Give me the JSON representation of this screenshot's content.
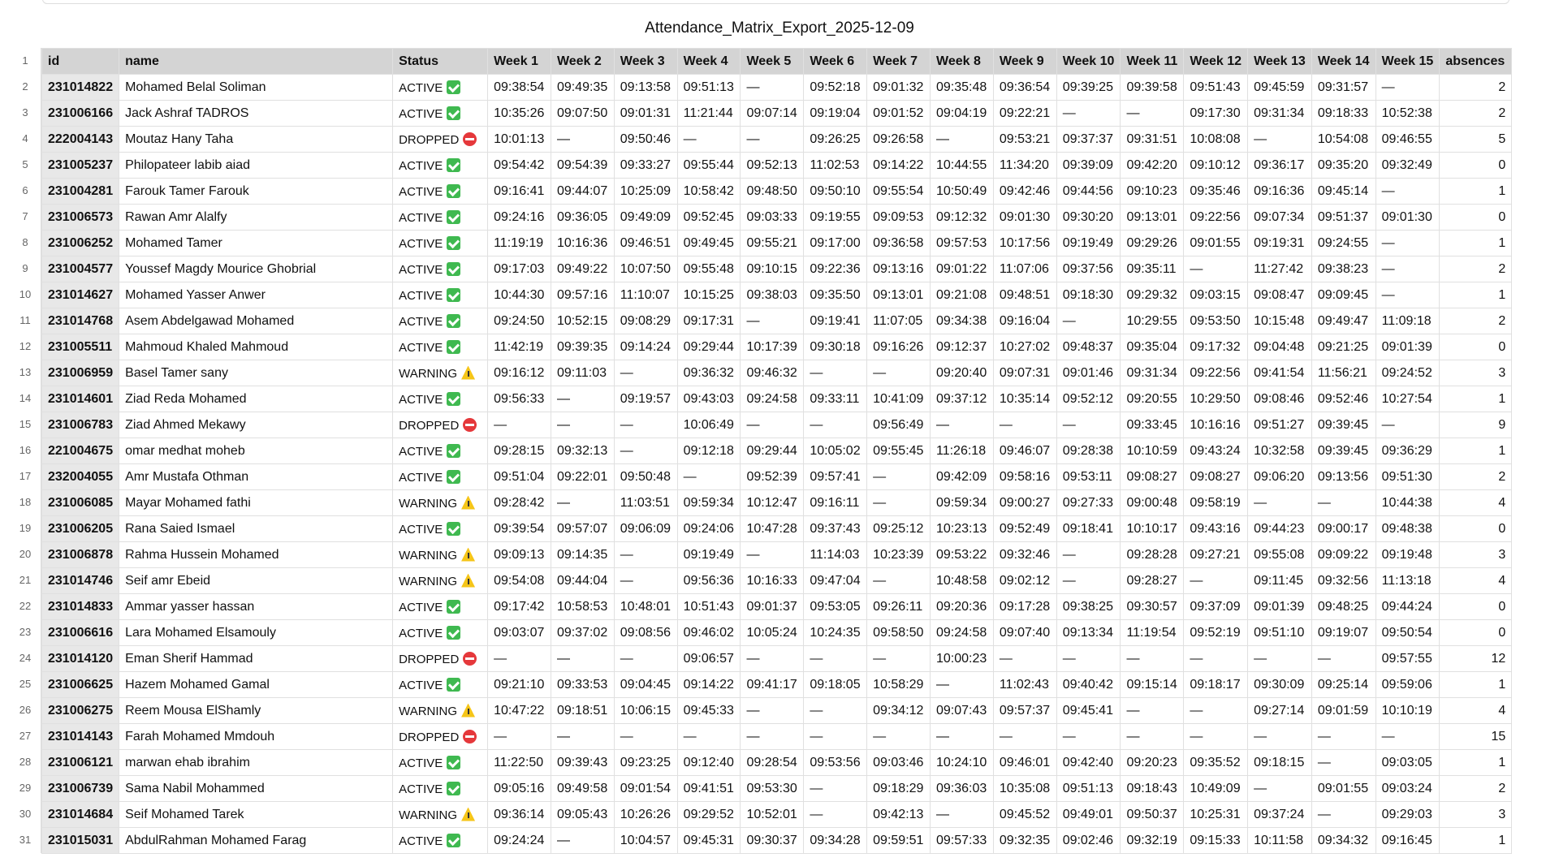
{
  "title": "Attendance_Matrix_Export_2025-12-09",
  "row_numbers": [
    1,
    2,
    3,
    4,
    5,
    6,
    7,
    8,
    9,
    10,
    11,
    12,
    13,
    14,
    15,
    16,
    17,
    18,
    19,
    20,
    21,
    22,
    23,
    24,
    25,
    26,
    27,
    28,
    29,
    30,
    31
  ],
  "table": {
    "columns": [
      "id",
      "name",
      "Status",
      "Week 1",
      "Week 2",
      "Week 3",
      "Week 4",
      "Week 5",
      "Week 6",
      "Week 7",
      "Week 8",
      "Week 9",
      "Week 10",
      "Week 11",
      "Week 12",
      "Week 13",
      "Week 14",
      "Week 15",
      "absences"
    ],
    "rows": [
      [
        "231014822",
        "Mohamed Belal Soliman",
        "ACTIVE",
        "09:38:54",
        "09:49:35",
        "09:13:58",
        "09:51:13",
        "—",
        "09:52:18",
        "09:01:32",
        "09:35:48",
        "09:36:54",
        "09:39:25",
        "09:39:58",
        "09:51:43",
        "09:45:59",
        "09:31:57",
        "—",
        2
      ],
      [
        "231006166",
        "Jack Ashraf TADROS",
        "ACTIVE",
        "10:35:26",
        "09:07:50",
        "09:01:31",
        "11:21:44",
        "09:07:14",
        "09:19:04",
        "09:01:52",
        "09:04:19",
        "09:22:21",
        "—",
        "—",
        "09:17:30",
        "09:31:34",
        "09:18:33",
        "10:52:38",
        2
      ],
      [
        "222004143",
        "Moutaz Hany Taha",
        "DROPPED",
        "10:01:13",
        "—",
        "09:50:46",
        "—",
        "—",
        "09:26:25",
        "09:26:58",
        "—",
        "09:53:21",
        "09:37:37",
        "09:31:51",
        "10:08:08",
        "—",
        "10:54:08",
        "09:46:55",
        5
      ],
      [
        "231005237",
        "Philopateer labib aiad",
        "ACTIVE",
        "09:54:42",
        "09:54:39",
        "09:33:27",
        "09:55:44",
        "09:52:13",
        "11:02:53",
        "09:14:22",
        "10:44:55",
        "11:34:20",
        "09:39:09",
        "09:42:20",
        "09:10:12",
        "09:36:17",
        "09:35:20",
        "09:32:49",
        0
      ],
      [
        "231004281",
        "Farouk Tamer Farouk",
        "ACTIVE",
        "09:16:41",
        "09:44:07",
        "10:25:09",
        "10:58:42",
        "09:48:50",
        "09:50:10",
        "09:55:54",
        "10:50:49",
        "09:42:46",
        "09:44:56",
        "09:10:23",
        "09:35:46",
        "09:16:36",
        "09:45:14",
        "—",
        1
      ],
      [
        "231006573",
        "Rawan Amr Alalfy",
        "ACTIVE",
        "09:24:16",
        "09:36:05",
        "09:49:09",
        "09:52:45",
        "09:03:33",
        "09:19:55",
        "09:09:53",
        "09:12:32",
        "09:01:30",
        "09:30:20",
        "09:13:01",
        "09:22:56",
        "09:07:34",
        "09:51:37",
        "09:01:30",
        0
      ],
      [
        "231006252",
        "Mohamed Tamer",
        "ACTIVE",
        "11:19:19",
        "10:16:36",
        "09:46:51",
        "09:49:45",
        "09:55:21",
        "09:17:00",
        "09:36:58",
        "09:57:53",
        "10:17:56",
        "09:19:49",
        "09:29:26",
        "09:01:55",
        "09:19:31",
        "09:24:55",
        "—",
        1
      ],
      [
        "231004577",
        "Youssef Magdy Mourice Ghobrial",
        "ACTIVE",
        "09:17:03",
        "09:49:22",
        "10:07:50",
        "09:55:48",
        "09:10:15",
        "09:22:36",
        "09:13:16",
        "09:01:22",
        "11:07:06",
        "09:37:56",
        "09:35:11",
        "—",
        "11:27:42",
        "09:38:23",
        "—",
        2
      ],
      [
        "231014627",
        "Mohamed Yasser Anwer",
        "ACTIVE",
        "10:44:30",
        "09:57:16",
        "11:10:07",
        "10:15:25",
        "09:38:03",
        "09:35:50",
        "09:13:01",
        "09:21:08",
        "09:48:51",
        "09:18:30",
        "09:29:32",
        "09:03:15",
        "09:08:47",
        "09:09:45",
        "—",
        1
      ],
      [
        "231014768",
        "Asem Abdelgawad Mohamed",
        "ACTIVE",
        "09:24:50",
        "10:52:15",
        "09:08:29",
        "09:17:31",
        "—",
        "09:19:41",
        "11:07:05",
        "09:34:38",
        "09:16:04",
        "—",
        "10:29:55",
        "09:53:50",
        "10:15:48",
        "09:49:47",
        "11:09:18",
        2
      ],
      [
        "231005511",
        "Mahmoud Khaled Mahmoud",
        "ACTIVE",
        "11:42:19",
        "09:39:35",
        "09:14:24",
        "09:29:44",
        "10:17:39",
        "09:30:18",
        "09:16:26",
        "09:12:37",
        "10:27:02",
        "09:48:37",
        "09:35:04",
        "09:17:32",
        "09:04:48",
        "09:21:25",
        "09:01:39",
        0
      ],
      [
        "231006959",
        "Basel Tamer sany",
        "WARNING",
        "09:16:12",
        "09:11:03",
        "—",
        "09:36:32",
        "09:46:32",
        "—",
        "—",
        "09:20:40",
        "09:07:31",
        "09:01:46",
        "09:31:34",
        "09:22:56",
        "09:41:54",
        "11:56:21",
        "09:24:52",
        3
      ],
      [
        "231014601",
        "Ziad Reda Mohamed",
        "ACTIVE",
        "09:56:33",
        "—",
        "09:19:57",
        "09:43:03",
        "09:24:58",
        "09:33:11",
        "10:41:09",
        "09:37:12",
        "10:35:14",
        "09:52:12",
        "09:20:55",
        "10:29:50",
        "09:08:46",
        "09:52:46",
        "10:27:54",
        1
      ],
      [
        "231006783",
        "Ziad Ahmed Mekawy",
        "DROPPED",
        "—",
        "—",
        "—",
        "10:06:49",
        "—",
        "—",
        "09:56:49",
        "—",
        "—",
        "—",
        "09:33:45",
        "10:16:16",
        "09:51:27",
        "09:39:45",
        "—",
        9
      ],
      [
        "221004675",
        "omar medhat moheb",
        "ACTIVE",
        "09:28:15",
        "09:32:13",
        "—",
        "09:12:18",
        "09:29:44",
        "10:05:02",
        "09:55:45",
        "11:26:18",
        "09:46:07",
        "09:28:38",
        "10:10:59",
        "09:43:24",
        "10:32:58",
        "09:39:45",
        "09:36:29",
        1
      ],
      [
        "232004055",
        "Amr Mustafa Othman",
        "ACTIVE",
        "09:51:04",
        "09:22:01",
        "09:50:48",
        "—",
        "09:52:39",
        "09:57:41",
        "—",
        "09:42:09",
        "09:58:16",
        "09:53:11",
        "09:08:27",
        "09:08:27",
        "09:06:20",
        "09:13:56",
        "09:51:30",
        2
      ],
      [
        "231006085",
        "Mayar Mohamed fathi",
        "WARNING",
        "09:28:42",
        "—",
        "11:03:51",
        "09:59:34",
        "10:12:47",
        "09:16:11",
        "—",
        "09:59:34",
        "09:00:27",
        "09:27:33",
        "09:00:48",
        "09:58:19",
        "—",
        "—",
        "10:44:38",
        4
      ],
      [
        "231006205",
        "Rana Saied Ismael",
        "ACTIVE",
        "09:39:54",
        "09:57:07",
        "09:06:09",
        "09:24:06",
        "10:47:28",
        "09:37:43",
        "09:25:12",
        "10:23:13",
        "09:52:49",
        "09:18:41",
        "10:10:17",
        "09:43:16",
        "09:44:23",
        "09:00:17",
        "09:48:38",
        0
      ],
      [
        "231006878",
        "Rahma Hussein Mohamed",
        "WARNING",
        "09:09:13",
        "09:14:35",
        "—",
        "09:19:49",
        "—",
        "11:14:03",
        "10:23:39",
        "09:53:22",
        "09:32:46",
        "—",
        "09:28:28",
        "09:27:21",
        "09:55:08",
        "09:09:22",
        "09:19:48",
        3
      ],
      [
        "231014746",
        "Seif amr Ebeid",
        "WARNING",
        "09:54:08",
        "09:44:04",
        "—",
        "09:56:36",
        "10:16:33",
        "09:47:04",
        "—",
        "10:48:58",
        "09:02:12",
        "—",
        "09:28:27",
        "—",
        "09:11:45",
        "09:32:56",
        "11:13:18",
        4
      ],
      [
        "231014833",
        "Ammar yasser hassan",
        "ACTIVE",
        "09:17:42",
        "10:58:53",
        "10:48:01",
        "10:51:43",
        "09:01:37",
        "09:53:05",
        "09:26:11",
        "09:20:36",
        "09:17:28",
        "09:38:25",
        "09:30:57",
        "09:37:09",
        "09:01:39",
        "09:48:25",
        "09:44:24",
        0
      ],
      [
        "231006616",
        "Lara Mohamed Elsamouly",
        "ACTIVE",
        "09:03:07",
        "09:37:02",
        "09:08:56",
        "09:46:02",
        "10:05:24",
        "10:24:35",
        "09:58:50",
        "09:24:58",
        "09:07:40",
        "09:13:34",
        "11:19:54",
        "09:52:19",
        "09:51:10",
        "09:19:07",
        "09:50:54",
        0
      ],
      [
        "231014120",
        "Eman Sherif Hammad",
        "DROPPED",
        "—",
        "—",
        "—",
        "09:06:57",
        "—",
        "—",
        "—",
        "10:00:23",
        "—",
        "—",
        "—",
        "—",
        "—",
        "—",
        "09:57:55",
        12
      ],
      [
        "231006625",
        "Hazem Mohamed Gamal",
        "ACTIVE",
        "09:21:10",
        "09:33:53",
        "09:04:45",
        "09:14:22",
        "09:41:17",
        "09:18:05",
        "10:58:29",
        "—",
        "11:02:43",
        "09:40:42",
        "09:15:14",
        "09:18:17",
        "09:30:09",
        "09:25:14",
        "09:59:06",
        1
      ],
      [
        "231006275",
        "Reem Mousa ElShamly",
        "WARNING",
        "10:47:22",
        "09:18:51",
        "10:06:15",
        "09:45:33",
        "—",
        "—",
        "09:34:12",
        "09:07:43",
        "09:57:37",
        "09:45:41",
        "—",
        "—",
        "09:27:14",
        "09:01:59",
        "10:10:19",
        4
      ],
      [
        "231014143",
        "Farah Mohamed Mmdouh",
        "DROPPED",
        "—",
        "—",
        "—",
        "—",
        "—",
        "—",
        "—",
        "—",
        "—",
        "—",
        "—",
        "—",
        "—",
        "—",
        "—",
        15
      ],
      [
        "231006121",
        "marwan ehab ibrahim",
        "ACTIVE",
        "11:22:50",
        "09:39:43",
        "09:23:25",
        "09:12:40",
        "09:28:54",
        "09:53:56",
        "09:03:46",
        "10:24:10",
        "09:46:01",
        "09:42:40",
        "09:20:23",
        "09:35:52",
        "09:18:15",
        "—",
        "09:03:05",
        1
      ],
      [
        "231006739",
        "Sama Nabil Mohammed",
        "ACTIVE",
        "09:05:16",
        "09:49:58",
        "09:01:54",
        "09:41:51",
        "09:53:30",
        "—",
        "09:18:29",
        "09:36:03",
        "10:35:08",
        "09:51:13",
        "09:18:43",
        "10:49:09",
        "—",
        "09:01:55",
        "09:03:24",
        2
      ],
      [
        "231014684",
        "Seif Mohamed Tarek",
        "WARNING",
        "09:36:14",
        "09:05:43",
        "10:26:26",
        "09:29:52",
        "10:52:01",
        "—",
        "09:42:13",
        "—",
        "09:45:52",
        "09:49:01",
        "09:50:37",
        "10:25:31",
        "09:37:24",
        "—",
        "09:29:03",
        3
      ],
      [
        "231015031",
        "AbdulRahman Mohamed Farag",
        "ACTIVE",
        "09:24:24",
        "—",
        "10:04:57",
        "09:45:31",
        "09:30:37",
        "09:34:28",
        "09:59:51",
        "09:57:33",
        "09:32:35",
        "09:02:46",
        "09:32:19",
        "09:15:33",
        "10:11:58",
        "09:34:32",
        "09:16:45",
        1
      ]
    ]
  }
}
